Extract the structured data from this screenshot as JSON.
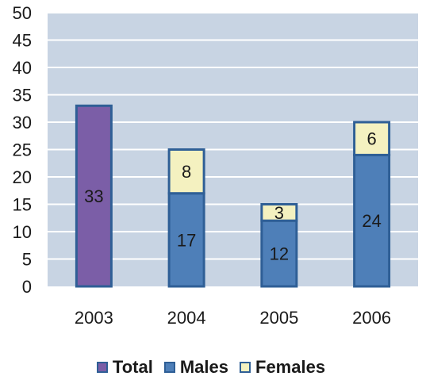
{
  "chart_data": {
    "type": "bar",
    "stacked": true,
    "categories": [
      "2003",
      "2004",
      "2005",
      "2006"
    ],
    "series": [
      {
        "name": "Total",
        "values": [
          33,
          null,
          null,
          null
        ],
        "color": "#7b5ea7",
        "stroke": "#2f5f96"
      },
      {
        "name": "Males",
        "values": [
          null,
          17,
          12,
          24
        ],
        "color": "#4e7fb8",
        "stroke": "#2f5f96"
      },
      {
        "name": "Females",
        "values": [
          null,
          8,
          3,
          6
        ],
        "color": "#f4f1c0",
        "stroke": "#2f5f96"
      }
    ],
    "ylim": [
      0,
      50
    ],
    "yticks": [
      0,
      5,
      10,
      15,
      20,
      25,
      30,
      35,
      40,
      45,
      50
    ],
    "grid": true,
    "plot_background": "#c8d4e3",
    "grid_color": "#ffffff",
    "legend_position": "bottom"
  }
}
